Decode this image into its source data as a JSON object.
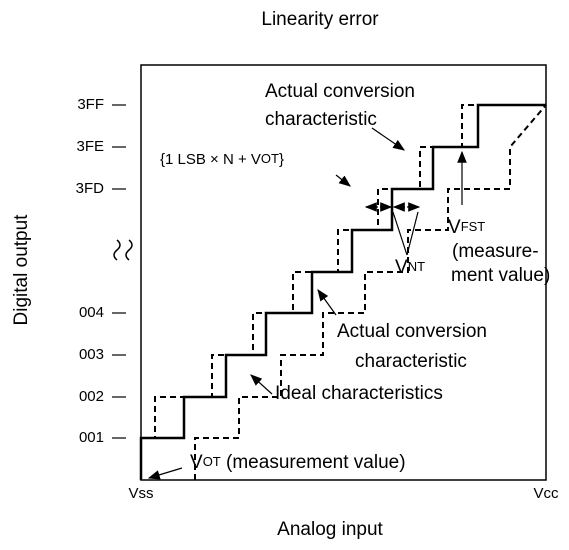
{
  "title": "Linearity error",
  "axes": {
    "y_label": "Digital output",
    "x_label": "Analog input",
    "x_start": "Vss",
    "x_end": "Vcc",
    "y_ticks": [
      "3FF",
      "3FE",
      "3FD",
      "004",
      "003",
      "002",
      "001"
    ]
  },
  "annotations": {
    "actual_top": [
      "Actual conversion",
      "characteristic"
    ],
    "lsb": {
      "main": "{1 LSB × N + V",
      "sub": "OT",
      "end": "}"
    },
    "vfst": {
      "main": "V",
      "sub": "FST",
      "lines": [
        "(measure-",
        "ment value)"
      ]
    },
    "vnt": {
      "main": "V",
      "sub": "NT"
    },
    "actual_bottom": [
      "Actual conversion",
      "characteristic"
    ],
    "ideal": "Ideal characteristics",
    "vot": {
      "main": "V",
      "sub": "OT",
      "rest": " (measurement value)"
    }
  }
}
